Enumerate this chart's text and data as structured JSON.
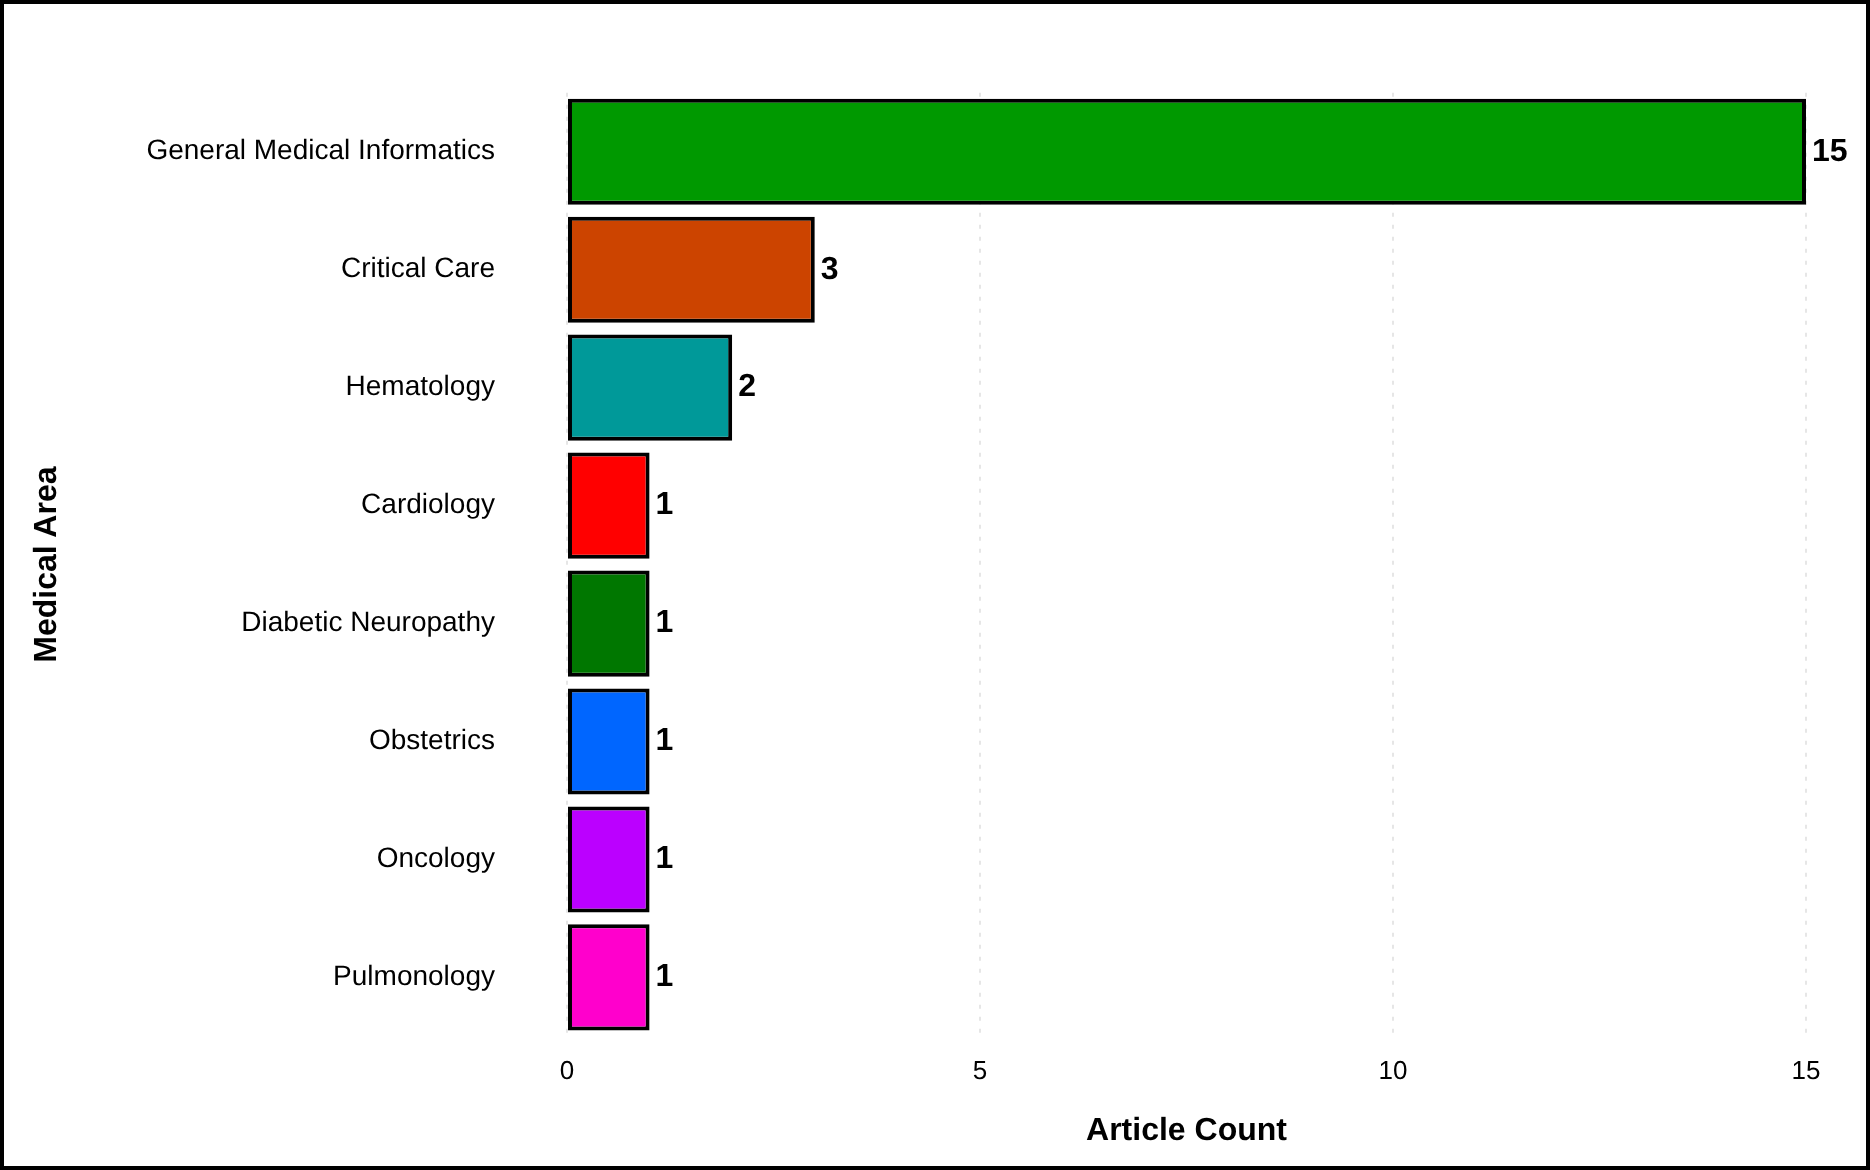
{
  "chart_data": {
    "type": "bar",
    "orientation": "horizontal",
    "xlabel": "Article Count",
    "ylabel": "Medical Area",
    "categories": [
      "General Medical Informatics",
      "Critical Care",
      "Hematology",
      "Cardiology",
      "Diabetic Neuropathy",
      "Obstetrics",
      "Oncology",
      "Pulmonology"
    ],
    "values": [
      15,
      3,
      2,
      1,
      1,
      1,
      1,
      1
    ],
    "colors": [
      "#009900",
      "#cc4400",
      "#009999",
      "#ff0000",
      "#007700",
      "#0066ff",
      "#bb00ff",
      "#ff00cc"
    ],
    "xlim": [
      0,
      15
    ],
    "xticks": [
      0,
      5,
      10,
      15
    ],
    "grid": "x",
    "data_labels": true,
    "legend": false
  }
}
